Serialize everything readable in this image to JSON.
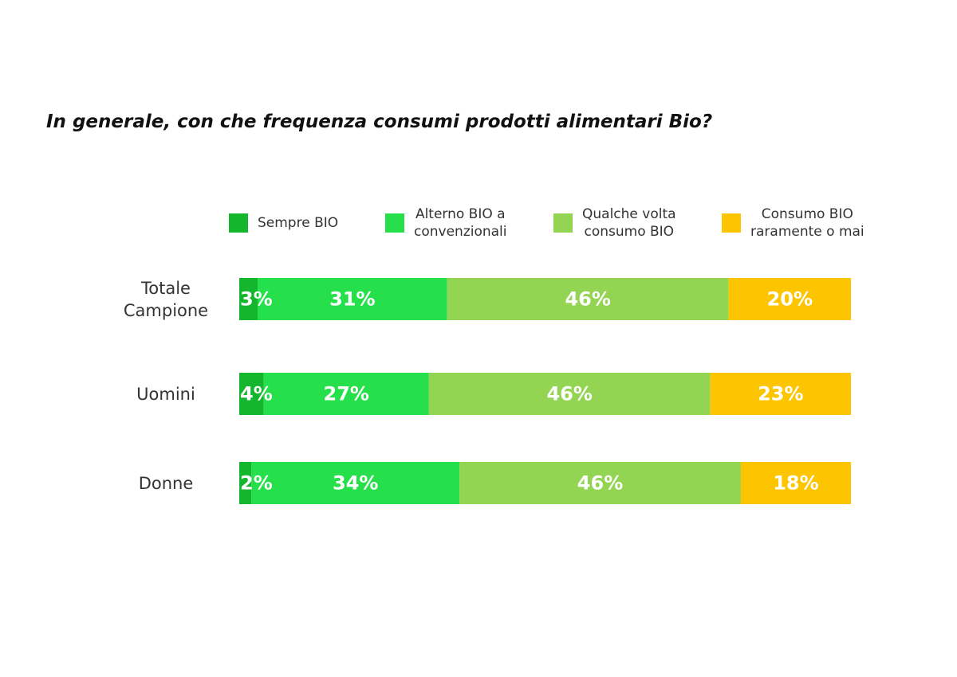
{
  "chart_data": {
    "type": "bar",
    "orientation": "horizontal",
    "stacked": true,
    "title": "In generale, con che frequenza consumi prodotti alimentari Bio?",
    "categories": [
      [
        "Totale",
        "Campione"
      ],
      [
        "Uomini"
      ],
      [
        "Donne"
      ]
    ],
    "series": [
      {
        "name": [
          "Sempre BIO"
        ],
        "color": "#14b62d",
        "values": [
          3,
          4,
          2
        ],
        "labels": [
          "3%",
          "4%",
          "2%"
        ]
      },
      {
        "name": [
          "Alterno BIO a",
          "convenzionali"
        ],
        "color": "#25e04a",
        "values": [
          31,
          27,
          34
        ],
        "labels": [
          "31%",
          "27%",
          "34%"
        ]
      },
      {
        "name": [
          "Qualche volta",
          "consumo BIO"
        ],
        "color": "#93d452",
        "values": [
          46,
          46,
          46
        ],
        "labels": [
          "46%",
          "46%",
          "46%"
        ]
      },
      {
        "name": [
          "Consumo BIO",
          "raramente o mai"
        ],
        "color": "#fcc500",
        "values": [
          20,
          23,
          18
        ],
        "labels": [
          "20%",
          "23%",
          "18%"
        ]
      }
    ],
    "xlim": [
      0,
      100
    ],
    "legend_position": "top",
    "grid": false
  }
}
